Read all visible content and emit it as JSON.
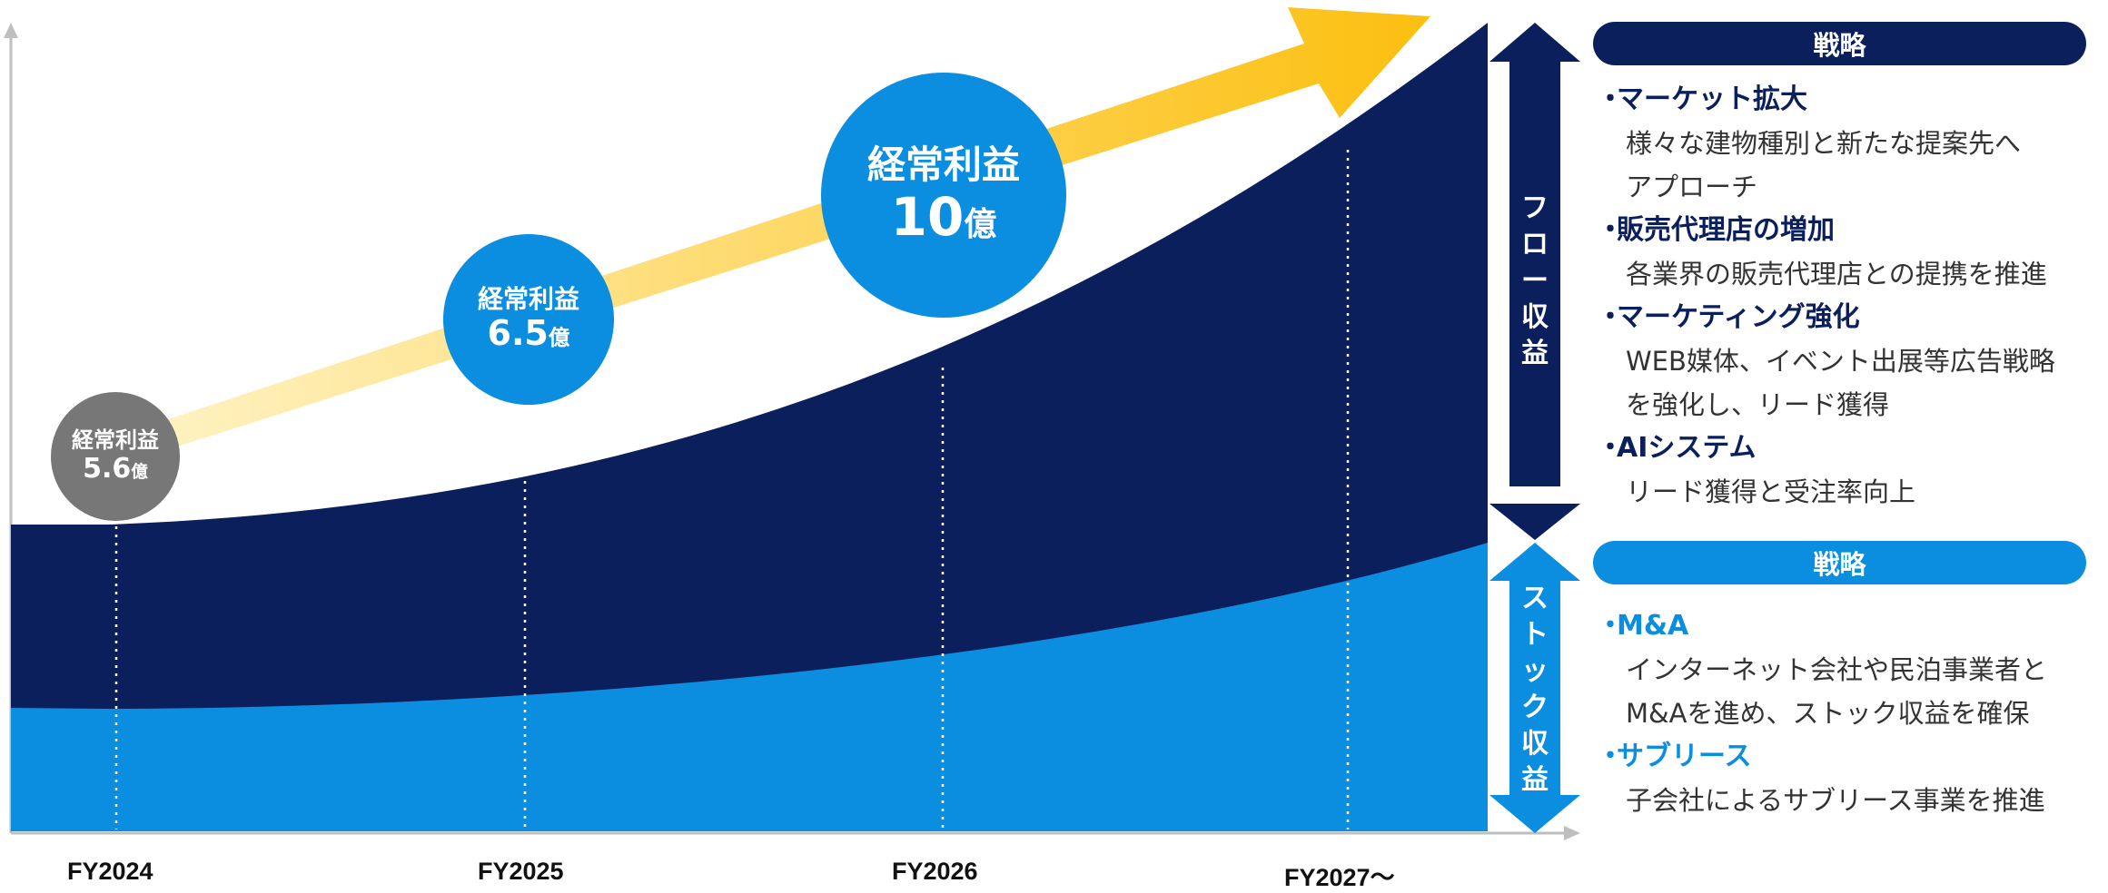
{
  "colors": {
    "navy": "#0b1f5c",
    "blue": "#0b8ee0",
    "gray": "#777777",
    "arrow_start": "#fff3c4",
    "arrow_end": "#fcbf0f",
    "axis": "#bfbfbf"
  },
  "x_axis": {
    "labels": [
      "FY2024",
      "FY2025",
      "FY2026",
      "FY2027〜"
    ]
  },
  "profit_bubbles": [
    {
      "label": "経常利益",
      "value": "5.6",
      "unit": "億"
    },
    {
      "label": "経常利益",
      "value": "6.5",
      "unit": "億"
    },
    {
      "label": "経常利益",
      "value": "10",
      "unit": "億"
    }
  ],
  "bands": {
    "flow": [
      "フ",
      "ロ",
      "ー",
      "収",
      "益"
    ],
    "stock": [
      "ス",
      "ト",
      "ッ",
      "ク",
      "収",
      "益"
    ]
  },
  "strategy_flow": {
    "header": "戦略",
    "items": [
      {
        "title": "マーケット拡大",
        "desc": [
          "様々な建物種別と新たな提案先へ",
          "アプローチ"
        ]
      },
      {
        "title": "販売代理店の増加",
        "desc": [
          "各業界の販売代理店との提携を推進"
        ]
      },
      {
        "title": "マーケティング強化",
        "desc": [
          "WEB媒体、イベント出展等広告戦略",
          "を強化し、リード獲得"
        ]
      },
      {
        "title": "AIシステム",
        "desc": [
          "リード獲得と受注率向上"
        ]
      }
    ]
  },
  "strategy_stock": {
    "header": "戦略",
    "items": [
      {
        "title": "M&A",
        "desc": [
          "インターネット会社や民泊事業者と",
          "M&Aを進め、ストック収益を確保"
        ]
      },
      {
        "title": "サブリース",
        "desc": [
          "子会社によるサブリース事業を推進"
        ]
      }
    ]
  }
}
